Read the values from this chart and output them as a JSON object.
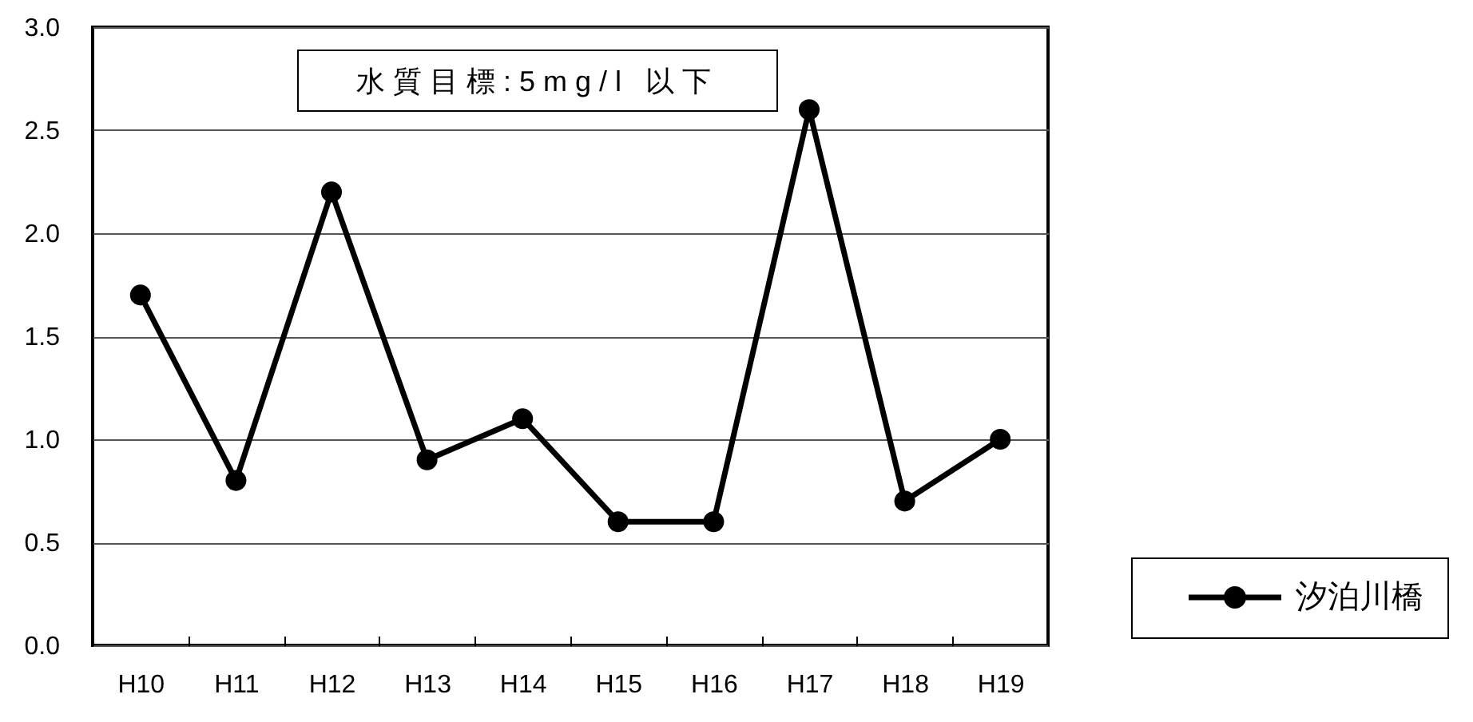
{
  "chart_data": {
    "type": "line",
    "categories": [
      "H10",
      "H11",
      "H12",
      "H13",
      "H14",
      "H15",
      "H16",
      "H17",
      "H18",
      "H19"
    ],
    "series": [
      {
        "name": "汐泊川橋",
        "color": "#000000",
        "values": [
          1.7,
          0.8,
          2.2,
          0.9,
          1.1,
          0.6,
          0.6,
          2.6,
          0.7,
          1.0
        ]
      }
    ],
    "ylim": [
      0,
      3
    ],
    "yticks": [
      {
        "value": 0,
        "label": "0.0"
      },
      0.5,
      {
        "value": 1,
        "label": "1.0"
      },
      1.5,
      {
        "value": 2,
        "label": "2.0"
      },
      2.5,
      {
        "value": 3,
        "label": "3.0"
      }
    ],
    "grid": "y",
    "legend": "right",
    "marker": "circle",
    "line_style": "solid",
    "annotations": [
      "水質目標:5mg/l 以下"
    ]
  }
}
